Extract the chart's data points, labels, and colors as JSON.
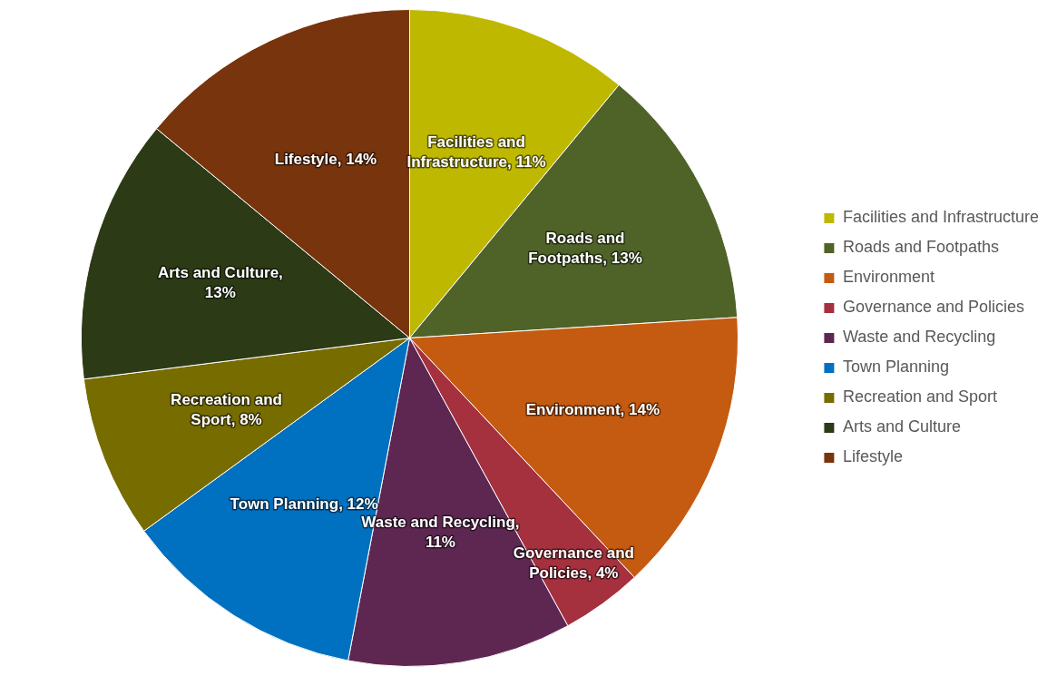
{
  "chart_data": {
    "type": "pie",
    "categories": [
      "Facilities and Infrastructure",
      "Roads and Footpaths",
      "Environment",
      "Governance and Policies",
      "Waste and Recycling",
      "Town Planning",
      "Recreation and Sport",
      "Arts and Culture",
      "Lifestyle"
    ],
    "values": [
      11,
      13,
      14,
      4,
      11,
      12,
      8,
      13,
      14
    ],
    "value_labels": [
      "Facilities and Infrastructure, 11%",
      "Roads and Footpaths, 13%",
      "Environment, 14%",
      "Governance and Policies, 4%",
      "Waste and Recycling, 11%",
      "Town Planning, 12%",
      "Recreation and Sport, 8%",
      "Arts and Culture, 13%",
      "Lifestyle, 14%"
    ],
    "colors": [
      "#bfb800",
      "#4f6228",
      "#c55a11",
      "#a5303e",
      "#5e2751",
      "#0070c0",
      "#766c00",
      "#2c3a16",
      "#78340c"
    ],
    "legend": "right"
  }
}
